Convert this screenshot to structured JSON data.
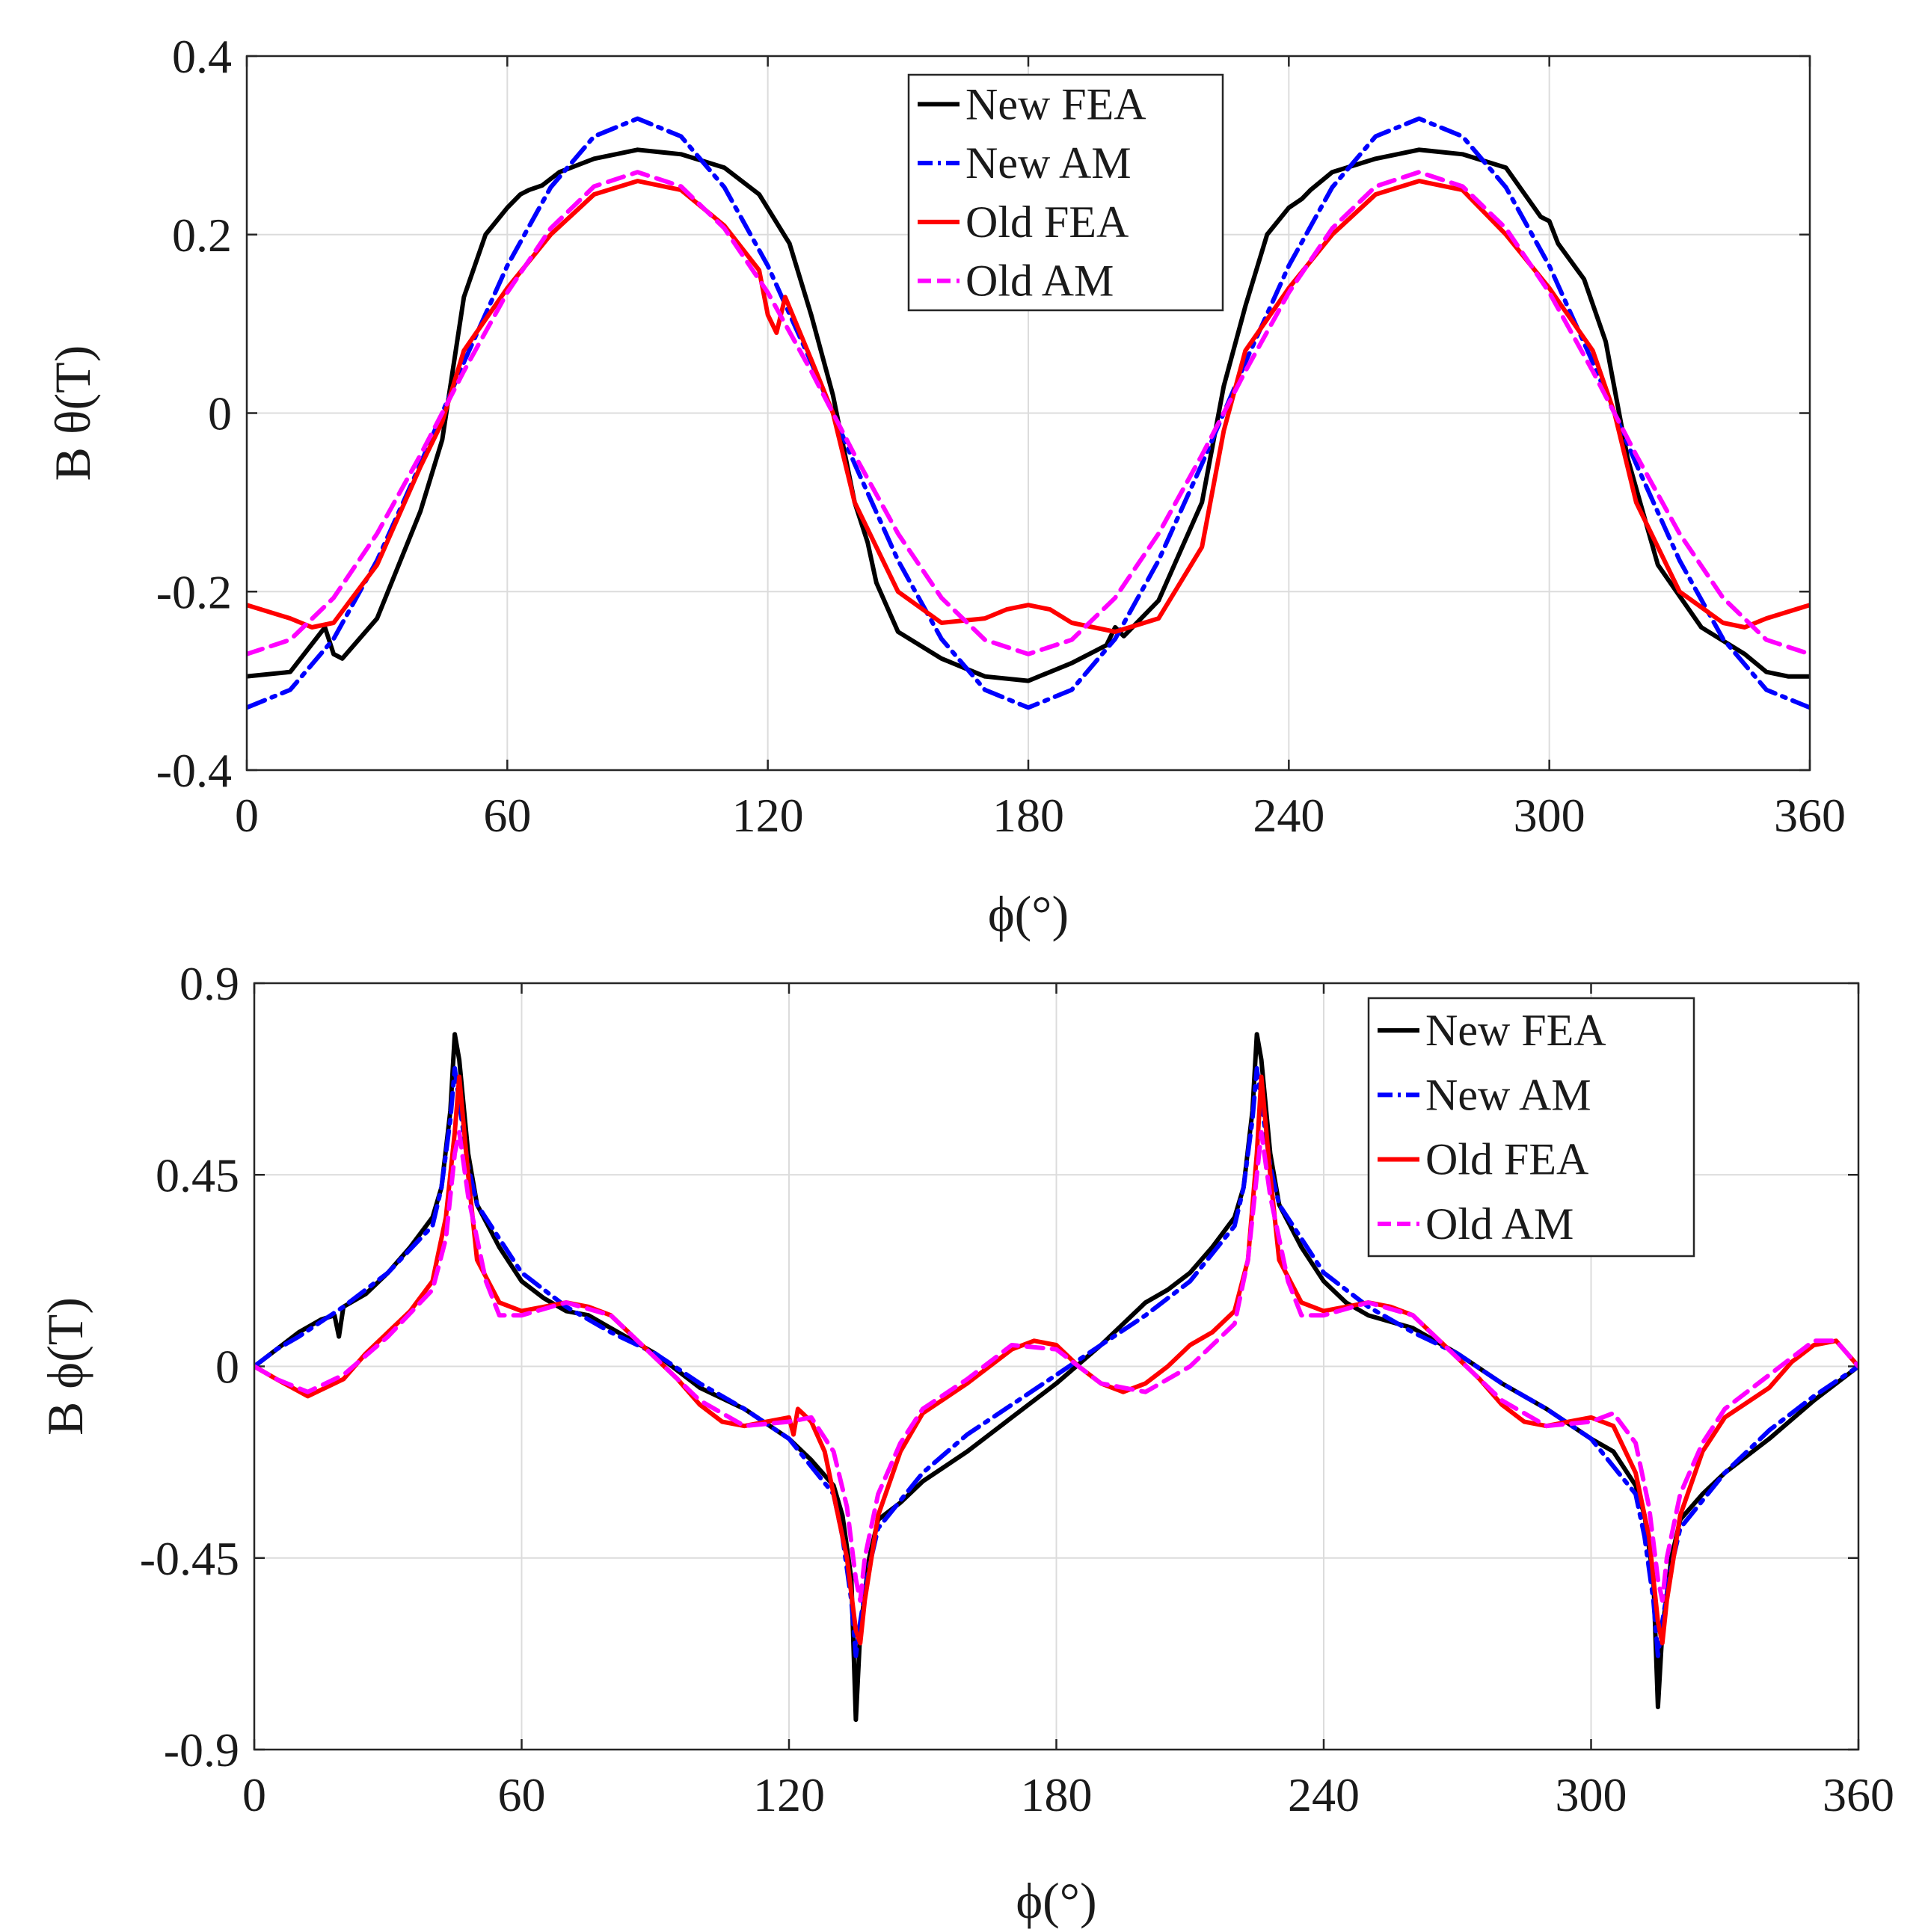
{
  "chart_data": [
    {
      "type": "line",
      "xlabel": "ϕ(°)",
      "ylabel": "B θ(T)",
      "xlim": [
        0,
        360
      ],
      "ylim": [
        -0.4,
        0.4
      ],
      "xticks": [
        0,
        60,
        120,
        180,
        240,
        300,
        360
      ],
      "yticks": [
        -0.4,
        -0.2,
        0,
        0.2,
        0.4
      ],
      "xtick_labels": [
        "0",
        "60",
        "120",
        "180",
        "240",
        "300",
        "360"
      ],
      "ytick_labels": [
        "-0.4",
        "-0.2",
        "0",
        "0.2",
        "0.4"
      ],
      "grid": true,
      "legend_position": "top-center",
      "series": [
        {
          "name": "New FEA",
          "color": "#000000",
          "dash": "solid",
          "x": [
            0,
            10,
            18,
            20,
            22,
            30,
            40,
            45,
            50,
            55,
            60,
            63,
            65,
            68,
            72,
            80,
            90,
            100,
            110,
            118,
            125,
            130,
            135,
            140,
            143,
            145,
            150,
            160,
            170,
            180,
            190,
            198,
            200,
            202,
            210,
            220,
            225,
            230,
            235,
            240,
            243,
            245,
            250,
            260,
            270,
            280,
            290,
            298,
            300,
            302,
            308,
            313,
            318,
            325,
            335,
            345,
            350,
            355,
            360
          ],
          "values": [
            -0.295,
            -0.29,
            -0.24,
            -0.27,
            -0.275,
            -0.23,
            -0.11,
            -0.03,
            0.13,
            0.2,
            0.23,
            0.245,
            0.25,
            0.255,
            0.27,
            0.285,
            0.295,
            0.29,
            0.275,
            0.245,
            0.19,
            0.11,
            0.02,
            -0.1,
            -0.145,
            -0.19,
            -0.245,
            -0.275,
            -0.295,
            -0.3,
            -0.28,
            -0.26,
            -0.24,
            -0.25,
            -0.21,
            -0.1,
            0.03,
            0.12,
            0.2,
            0.23,
            0.24,
            0.25,
            0.27,
            0.285,
            0.295,
            0.29,
            0.275,
            0.22,
            0.215,
            0.19,
            0.15,
            0.08,
            -0.05,
            -0.17,
            -0.24,
            -0.27,
            -0.29,
            -0.295,
            -0.295
          ]
        },
        {
          "name": "New AM",
          "color": "#0000ff",
          "dash": "dashdot",
          "x": [
            0,
            10,
            20,
            30,
            40,
            50,
            60,
            70,
            80,
            90,
            100,
            110,
            120,
            130,
            140,
            150,
            160,
            170,
            180,
            190,
            200,
            210,
            220,
            230,
            240,
            250,
            260,
            270,
            280,
            290,
            300,
            310,
            320,
            330,
            340,
            350,
            360
          ],
          "values": [
            -0.33,
            -0.31,
            -0.253,
            -0.165,
            -0.057,
            0.057,
            0.165,
            0.253,
            0.31,
            0.33,
            0.31,
            0.253,
            0.165,
            0.057,
            -0.057,
            -0.165,
            -0.253,
            -0.31,
            -0.33,
            -0.31,
            -0.253,
            -0.165,
            -0.057,
            0.057,
            0.165,
            0.253,
            0.31,
            0.33,
            0.31,
            0.253,
            0.165,
            0.057,
            -0.057,
            -0.165,
            -0.253,
            -0.31,
            -0.33
          ]
        },
        {
          "name": "Old FEA",
          "color": "#ff0000",
          "dash": "solid",
          "x": [
            0,
            10,
            15,
            20,
            30,
            40,
            45,
            50,
            60,
            70,
            80,
            90,
            100,
            110,
            118,
            120,
            122,
            124,
            130,
            135,
            140,
            150,
            160,
            170,
            175,
            180,
            185,
            190,
            200,
            210,
            220,
            225,
            230,
            240,
            250,
            260,
            270,
            280,
            290,
            300,
            310,
            315,
            320,
            330,
            340,
            345,
            350,
            360
          ],
          "values": [
            -0.215,
            -0.23,
            -0.24,
            -0.235,
            -0.17,
            -0.06,
            -0.01,
            0.07,
            0.14,
            0.2,
            0.245,
            0.26,
            0.25,
            0.21,
            0.16,
            0.11,
            0.09,
            0.13,
            0.06,
            0.0,
            -0.1,
            -0.2,
            -0.235,
            -0.23,
            -0.22,
            -0.215,
            -0.22,
            -0.235,
            -0.245,
            -0.23,
            -0.15,
            -0.02,
            0.07,
            0.14,
            0.2,
            0.245,
            0.26,
            0.25,
            0.2,
            0.14,
            0.07,
            0.0,
            -0.1,
            -0.2,
            -0.235,
            -0.24,
            -0.23,
            -0.215
          ]
        },
        {
          "name": "Old AM",
          "color": "#ff00ff",
          "dash": "dashed",
          "x": [
            0,
            10,
            20,
            30,
            40,
            50,
            60,
            70,
            80,
            90,
            100,
            110,
            120,
            130,
            140,
            150,
            160,
            170,
            180,
            190,
            200,
            210,
            220,
            230,
            240,
            250,
            260,
            270,
            280,
            290,
            300,
            310,
            320,
            330,
            340,
            350,
            360
          ],
          "values": [
            -0.27,
            -0.254,
            -0.207,
            -0.135,
            -0.047,
            0.047,
            0.135,
            0.207,
            0.254,
            0.27,
            0.254,
            0.207,
            0.135,
            0.047,
            -0.047,
            -0.135,
            -0.207,
            -0.254,
            -0.27,
            -0.254,
            -0.207,
            -0.135,
            -0.047,
            0.047,
            0.135,
            0.207,
            0.254,
            0.27,
            0.254,
            0.207,
            0.135,
            0.047,
            -0.047,
            -0.135,
            -0.207,
            -0.254,
            -0.27
          ]
        }
      ]
    },
    {
      "type": "line",
      "xlabel": "ϕ(°)",
      "ylabel": "B ϕ(T)",
      "xlim": [
        0,
        360
      ],
      "ylim": [
        -0.9,
        0.9
      ],
      "xticks": [
        0,
        60,
        120,
        180,
        240,
        300,
        360
      ],
      "yticks": [
        -0.9,
        -0.45,
        0,
        0.45,
        0.9
      ],
      "xtick_labels": [
        "0",
        "60",
        "120",
        "180",
        "240",
        "300",
        "360"
      ],
      "ytick_labels": [
        "-0.9",
        "-0.45",
        "0",
        "0.45",
        "0.9"
      ],
      "grid": true,
      "legend_position": "top-right",
      "series": [
        {
          "name": "New FEA",
          "color": "#000000",
          "dash": "solid",
          "x": [
            0,
            5,
            10,
            15,
            18,
            19,
            20,
            25,
            30,
            35,
            40,
            42,
            44,
            45,
            46,
            48,
            50,
            55,
            60,
            65,
            70,
            75,
            80,
            90,
            100,
            110,
            120,
            125,
            130,
            132,
            134,
            135,
            136,
            138,
            140,
            145,
            150,
            160,
            170,
            180,
            190,
            197,
            200,
            205,
            210,
            215,
            220,
            222,
            224,
            225,
            226,
            228,
            230,
            235,
            240,
            245,
            250,
            260,
            270,
            280,
            290,
            300,
            305,
            310,
            312,
            314,
            315,
            316,
            318,
            320,
            325,
            330,
            340,
            350,
            360
          ],
          "values": [
            0.0,
            0.04,
            0.08,
            0.11,
            0.12,
            0.07,
            0.14,
            0.17,
            0.22,
            0.28,
            0.35,
            0.42,
            0.6,
            0.78,
            0.72,
            0.5,
            0.38,
            0.28,
            0.2,
            0.16,
            0.13,
            0.12,
            0.09,
            0.03,
            -0.05,
            -0.1,
            -0.17,
            -0.22,
            -0.28,
            -0.35,
            -0.5,
            -0.83,
            -0.62,
            -0.45,
            -0.36,
            -0.32,
            -0.27,
            -0.2,
            -0.12,
            -0.04,
            0.05,
            0.12,
            0.15,
            0.18,
            0.22,
            0.28,
            0.35,
            0.42,
            0.6,
            0.78,
            0.72,
            0.5,
            0.38,
            0.28,
            0.2,
            0.15,
            0.12,
            0.09,
            0.03,
            -0.04,
            -0.1,
            -0.17,
            -0.2,
            -0.28,
            -0.35,
            -0.5,
            -0.8,
            -0.62,
            -0.45,
            -0.36,
            -0.3,
            -0.25,
            -0.17,
            -0.08,
            0.0
          ]
        },
        {
          "name": "New AM",
          "color": "#0000ff",
          "dash": "dashdot",
          "x": [
            0,
            5,
            10,
            20,
            30,
            40,
            42,
            44,
            45,
            46,
            48,
            50,
            60,
            70,
            80,
            90,
            100,
            110,
            120,
            130,
            132,
            134,
            135,
            136,
            138,
            140,
            150,
            160,
            170,
            180,
            190,
            200,
            210,
            220,
            222,
            224,
            225,
            226,
            228,
            230,
            240,
            250,
            260,
            270,
            280,
            290,
            300,
            310,
            312,
            314,
            315,
            316,
            318,
            320,
            330,
            340,
            350,
            360
          ],
          "values": [
            0.0,
            0.04,
            0.07,
            0.14,
            0.22,
            0.33,
            0.42,
            0.58,
            0.7,
            0.62,
            0.47,
            0.38,
            0.22,
            0.14,
            0.08,
            0.03,
            -0.04,
            -0.1,
            -0.17,
            -0.3,
            -0.4,
            -0.55,
            -0.68,
            -0.6,
            -0.47,
            -0.38,
            -0.25,
            -0.16,
            -0.09,
            -0.02,
            0.05,
            0.12,
            0.2,
            0.33,
            0.42,
            0.58,
            0.7,
            0.62,
            0.47,
            0.38,
            0.22,
            0.14,
            0.08,
            0.03,
            -0.04,
            -0.1,
            -0.17,
            -0.3,
            -0.4,
            -0.55,
            -0.68,
            -0.6,
            -0.47,
            -0.38,
            -0.25,
            -0.15,
            -0.07,
            0.0
          ]
        },
        {
          "name": "Old FEA",
          "color": "#ff0000",
          "dash": "solid",
          "x": [
            0,
            5,
            12,
            20,
            25,
            30,
            35,
            40,
            43,
            45,
            46,
            48,
            50,
            55,
            60,
            65,
            70,
            75,
            80,
            85,
            90,
            95,
            100,
            105,
            110,
            115,
            120,
            121,
            122,
            123,
            125,
            128,
            130,
            133,
            135,
            136,
            137,
            140,
            145,
            150,
            160,
            170,
            175,
            180,
            185,
            190,
            195,
            200,
            205,
            210,
            215,
            220,
            223,
            225,
            226,
            228,
            230,
            235,
            240,
            245,
            250,
            255,
            260,
            265,
            270,
            275,
            280,
            285,
            290,
            295,
            300,
            305,
            310,
            313,
            315,
            316,
            317,
            320,
            325,
            330,
            340,
            345,
            350,
            355,
            360
          ],
          "values": [
            0.0,
            -0.03,
            -0.07,
            -0.03,
            0.03,
            0.08,
            0.13,
            0.2,
            0.35,
            0.55,
            0.68,
            0.45,
            0.25,
            0.15,
            0.13,
            0.14,
            0.15,
            0.14,
            0.12,
            0.07,
            0.02,
            -0.03,
            -0.09,
            -0.13,
            -0.14,
            -0.13,
            -0.12,
            -0.16,
            -0.1,
            -0.11,
            -0.13,
            -0.2,
            -0.3,
            -0.45,
            -0.62,
            -0.65,
            -0.55,
            -0.35,
            -0.2,
            -0.11,
            -0.04,
            0.04,
            0.06,
            0.05,
            0.0,
            -0.04,
            -0.06,
            -0.04,
            0.0,
            0.05,
            0.08,
            0.13,
            0.25,
            0.5,
            0.68,
            0.45,
            0.25,
            0.15,
            0.13,
            0.14,
            0.15,
            0.14,
            0.12,
            0.07,
            0.02,
            -0.03,
            -0.09,
            -0.13,
            -0.14,
            -0.13,
            -0.12,
            -0.14,
            -0.25,
            -0.4,
            -0.6,
            -0.65,
            -0.55,
            -0.35,
            -0.2,
            -0.12,
            -0.05,
            0.01,
            0.05,
            0.06,
            0.0
          ]
        },
        {
          "name": "Old AM",
          "color": "#ff00ff",
          "dash": "dashed",
          "x": [
            0,
            5,
            12,
            20,
            30,
            40,
            43,
            45,
            46,
            48,
            52,
            55,
            60,
            70,
            80,
            90,
            100,
            110,
            120,
            125,
            130,
            133,
            135,
            136,
            137,
            140,
            145,
            150,
            160,
            170,
            180,
            190,
            200,
            210,
            220,
            223,
            225,
            226,
            228,
            232,
            235,
            240,
            250,
            260,
            270,
            280,
            290,
            300,
            305,
            310,
            313,
            315,
            316,
            317,
            320,
            325,
            330,
            340,
            350,
            355,
            360
          ],
          "values": [
            0.0,
            -0.03,
            -0.06,
            -0.02,
            0.07,
            0.18,
            0.3,
            0.5,
            0.55,
            0.4,
            0.2,
            0.12,
            0.12,
            0.15,
            0.12,
            0.02,
            -0.08,
            -0.14,
            -0.13,
            -0.12,
            -0.2,
            -0.33,
            -0.5,
            -0.55,
            -0.45,
            -0.3,
            -0.18,
            -0.1,
            -0.03,
            0.05,
            0.04,
            -0.04,
            -0.06,
            0.0,
            0.1,
            0.25,
            0.45,
            0.55,
            0.4,
            0.2,
            0.12,
            0.12,
            0.15,
            0.12,
            0.02,
            -0.08,
            -0.14,
            -0.13,
            -0.11,
            -0.18,
            -0.33,
            -0.5,
            -0.55,
            -0.45,
            -0.3,
            -0.18,
            -0.1,
            -0.02,
            0.06,
            0.06,
            0.0
          ]
        }
      ]
    }
  ]
}
